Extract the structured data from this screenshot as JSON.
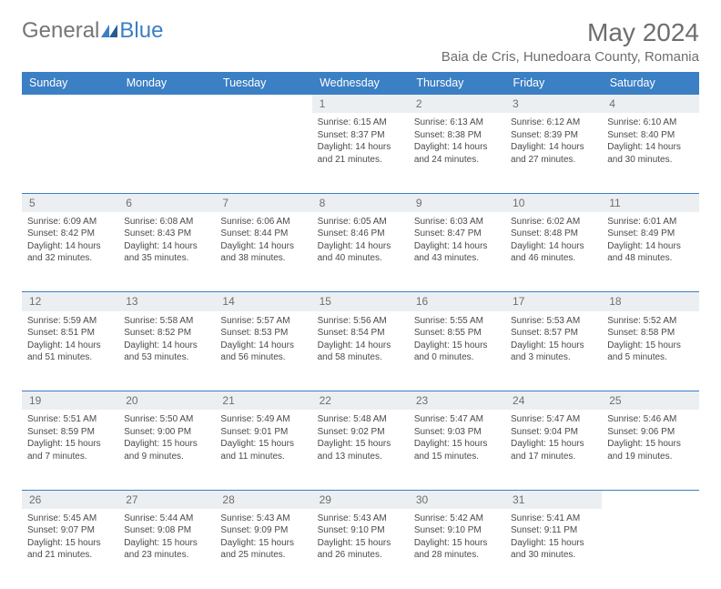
{
  "logo": {
    "general": "General",
    "blue": "Blue"
  },
  "title": "May 2024",
  "location": "Baia de Cris, Hunedoara County, Romania",
  "colors": {
    "header_bg": "#3b7fc4",
    "header_text": "#ffffff",
    "daynum_bg": "#eceff1",
    "border": "#3b7fc4",
    "text": "#4a4a4a",
    "muted": "#6e6e6e",
    "background": "#ffffff"
  },
  "typography": {
    "month_title_pt": 28,
    "location_pt": 15,
    "day_header_pt": 12.5,
    "daynum_pt": 12,
    "cell_pt": 10
  },
  "day_headers": [
    "Sunday",
    "Monday",
    "Tuesday",
    "Wednesday",
    "Thursday",
    "Friday",
    "Saturday"
  ],
  "weeks": [
    [
      {
        "d": "",
        "sr": "",
        "ss": "",
        "dl": ""
      },
      {
        "d": "",
        "sr": "",
        "ss": "",
        "dl": ""
      },
      {
        "d": "",
        "sr": "",
        "ss": "",
        "dl": ""
      },
      {
        "d": "1",
        "sr": "Sunrise: 6:15 AM",
        "ss": "Sunset: 8:37 PM",
        "dl": "Daylight: 14 hours and 21 minutes."
      },
      {
        "d": "2",
        "sr": "Sunrise: 6:13 AM",
        "ss": "Sunset: 8:38 PM",
        "dl": "Daylight: 14 hours and 24 minutes."
      },
      {
        "d": "3",
        "sr": "Sunrise: 6:12 AM",
        "ss": "Sunset: 8:39 PM",
        "dl": "Daylight: 14 hours and 27 minutes."
      },
      {
        "d": "4",
        "sr": "Sunrise: 6:10 AM",
        "ss": "Sunset: 8:40 PM",
        "dl": "Daylight: 14 hours and 30 minutes."
      }
    ],
    [
      {
        "d": "5",
        "sr": "Sunrise: 6:09 AM",
        "ss": "Sunset: 8:42 PM",
        "dl": "Daylight: 14 hours and 32 minutes."
      },
      {
        "d": "6",
        "sr": "Sunrise: 6:08 AM",
        "ss": "Sunset: 8:43 PM",
        "dl": "Daylight: 14 hours and 35 minutes."
      },
      {
        "d": "7",
        "sr": "Sunrise: 6:06 AM",
        "ss": "Sunset: 8:44 PM",
        "dl": "Daylight: 14 hours and 38 minutes."
      },
      {
        "d": "8",
        "sr": "Sunrise: 6:05 AM",
        "ss": "Sunset: 8:46 PM",
        "dl": "Daylight: 14 hours and 40 minutes."
      },
      {
        "d": "9",
        "sr": "Sunrise: 6:03 AM",
        "ss": "Sunset: 8:47 PM",
        "dl": "Daylight: 14 hours and 43 minutes."
      },
      {
        "d": "10",
        "sr": "Sunrise: 6:02 AM",
        "ss": "Sunset: 8:48 PM",
        "dl": "Daylight: 14 hours and 46 minutes."
      },
      {
        "d": "11",
        "sr": "Sunrise: 6:01 AM",
        "ss": "Sunset: 8:49 PM",
        "dl": "Daylight: 14 hours and 48 minutes."
      }
    ],
    [
      {
        "d": "12",
        "sr": "Sunrise: 5:59 AM",
        "ss": "Sunset: 8:51 PM",
        "dl": "Daylight: 14 hours and 51 minutes."
      },
      {
        "d": "13",
        "sr": "Sunrise: 5:58 AM",
        "ss": "Sunset: 8:52 PM",
        "dl": "Daylight: 14 hours and 53 minutes."
      },
      {
        "d": "14",
        "sr": "Sunrise: 5:57 AM",
        "ss": "Sunset: 8:53 PM",
        "dl": "Daylight: 14 hours and 56 minutes."
      },
      {
        "d": "15",
        "sr": "Sunrise: 5:56 AM",
        "ss": "Sunset: 8:54 PM",
        "dl": "Daylight: 14 hours and 58 minutes."
      },
      {
        "d": "16",
        "sr": "Sunrise: 5:55 AM",
        "ss": "Sunset: 8:55 PM",
        "dl": "Daylight: 15 hours and 0 minutes."
      },
      {
        "d": "17",
        "sr": "Sunrise: 5:53 AM",
        "ss": "Sunset: 8:57 PM",
        "dl": "Daylight: 15 hours and 3 minutes."
      },
      {
        "d": "18",
        "sr": "Sunrise: 5:52 AM",
        "ss": "Sunset: 8:58 PM",
        "dl": "Daylight: 15 hours and 5 minutes."
      }
    ],
    [
      {
        "d": "19",
        "sr": "Sunrise: 5:51 AM",
        "ss": "Sunset: 8:59 PM",
        "dl": "Daylight: 15 hours and 7 minutes."
      },
      {
        "d": "20",
        "sr": "Sunrise: 5:50 AM",
        "ss": "Sunset: 9:00 PM",
        "dl": "Daylight: 15 hours and 9 minutes."
      },
      {
        "d": "21",
        "sr": "Sunrise: 5:49 AM",
        "ss": "Sunset: 9:01 PM",
        "dl": "Daylight: 15 hours and 11 minutes."
      },
      {
        "d": "22",
        "sr": "Sunrise: 5:48 AM",
        "ss": "Sunset: 9:02 PM",
        "dl": "Daylight: 15 hours and 13 minutes."
      },
      {
        "d": "23",
        "sr": "Sunrise: 5:47 AM",
        "ss": "Sunset: 9:03 PM",
        "dl": "Daylight: 15 hours and 15 minutes."
      },
      {
        "d": "24",
        "sr": "Sunrise: 5:47 AM",
        "ss": "Sunset: 9:04 PM",
        "dl": "Daylight: 15 hours and 17 minutes."
      },
      {
        "d": "25",
        "sr": "Sunrise: 5:46 AM",
        "ss": "Sunset: 9:06 PM",
        "dl": "Daylight: 15 hours and 19 minutes."
      }
    ],
    [
      {
        "d": "26",
        "sr": "Sunrise: 5:45 AM",
        "ss": "Sunset: 9:07 PM",
        "dl": "Daylight: 15 hours and 21 minutes."
      },
      {
        "d": "27",
        "sr": "Sunrise: 5:44 AM",
        "ss": "Sunset: 9:08 PM",
        "dl": "Daylight: 15 hours and 23 minutes."
      },
      {
        "d": "28",
        "sr": "Sunrise: 5:43 AM",
        "ss": "Sunset: 9:09 PM",
        "dl": "Daylight: 15 hours and 25 minutes."
      },
      {
        "d": "29",
        "sr": "Sunrise: 5:43 AM",
        "ss": "Sunset: 9:10 PM",
        "dl": "Daylight: 15 hours and 26 minutes."
      },
      {
        "d": "30",
        "sr": "Sunrise: 5:42 AM",
        "ss": "Sunset: 9:10 PM",
        "dl": "Daylight: 15 hours and 28 minutes."
      },
      {
        "d": "31",
        "sr": "Sunrise: 5:41 AM",
        "ss": "Sunset: 9:11 PM",
        "dl": "Daylight: 15 hours and 30 minutes."
      },
      {
        "d": "",
        "sr": "",
        "ss": "",
        "dl": ""
      }
    ]
  ]
}
